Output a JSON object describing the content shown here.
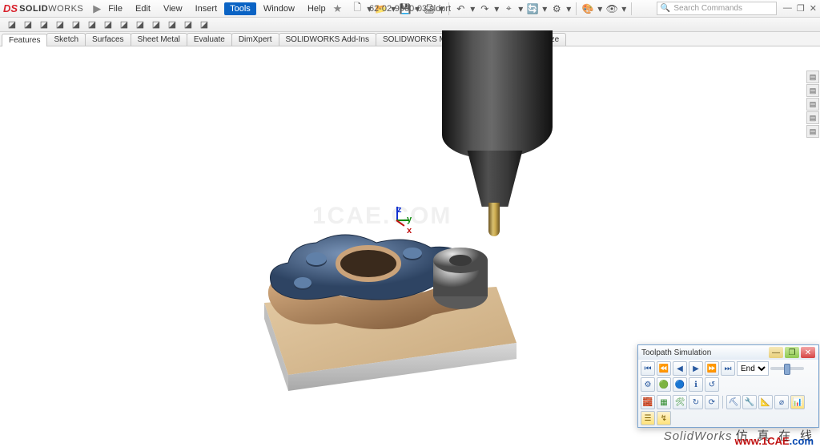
{
  "app": {
    "logo_ds": "DS",
    "logo_solid": "SOLID",
    "logo_works": "WORKS",
    "doc_title": "62-02-9000-03.sldprt",
    "search_placeholder": "Search Commands"
  },
  "menu": [
    "File",
    "Edit",
    "View",
    "Insert",
    "Tools",
    "Window",
    "Help"
  ],
  "menu_highlight_index": 4,
  "qat_icons": [
    "new-doc",
    "open",
    "save",
    "print",
    "dd",
    "undo",
    "redo",
    "select",
    "rebuild",
    "options",
    "dd2",
    "appearance",
    "view-settings",
    "dd3"
  ],
  "winctrl": {
    "min": "—",
    "max": "❐",
    "close": "✕"
  },
  "toolbar2": [
    "cmd1",
    "cmd2",
    "cmd3",
    "cmd4",
    "cmd5",
    "cmd6",
    "cmd7",
    "cmd8",
    "cmd9",
    "cmd10",
    "cmd11",
    "cmd12",
    "cmd13"
  ],
  "tabs": [
    "Features",
    "Sketch",
    "Surfaces",
    "Sheet Metal",
    "Evaluate",
    "DimXpert",
    "SOLIDWORKS Add-Ins",
    "SOLIDWORKS MBD",
    "SOLIDWORKS Visualize"
  ],
  "active_tab_index": 0,
  "coord": {
    "x": "x",
    "y": "y",
    "z": "z"
  },
  "watermark": "1CAE.COM",
  "side_icons": [
    "a",
    "b",
    "c",
    "d",
    "e"
  ],
  "sim": {
    "title": "Toolpath Simulation",
    "playback": [
      "⏮",
      "⏪",
      "◀",
      "▶",
      "⏩",
      "⏭"
    ],
    "mode_options": [
      "End"
    ],
    "mode_value": "End",
    "row1_extra": [
      "⚙",
      "🟢",
      "🔵",
      "ℹ",
      "↺"
    ],
    "row2": [
      "🧱",
      "▦",
      "🛠",
      "↻",
      "⟳",
      "|",
      "⛏",
      "🔧",
      "📐",
      "⌀",
      "📊",
      "☰",
      "↯"
    ]
  },
  "footer": {
    "sworks": "SolidWorks",
    "ch": "仿 真 在 线",
    "url_w": "www.",
    "url_mid": "1CAE",
    "url_c": ".com"
  },
  "colors": {
    "part_blue": "#55749d",
    "part_blue_dk": "#2e4463",
    "bronze": "#a6764e",
    "bronze_lt": "#cda47b",
    "steel": "#c9c9c9",
    "steel_dk": "#9a9a9a",
    "plate": "#d6b78f"
  }
}
